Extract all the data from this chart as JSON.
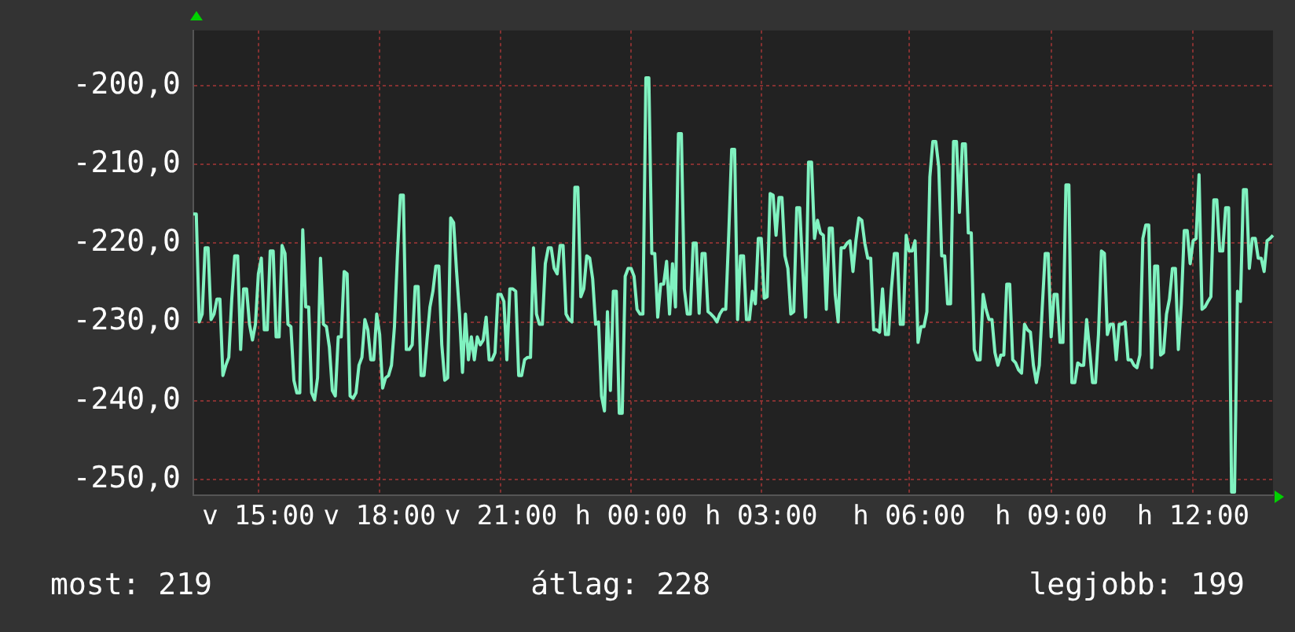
{
  "chart_data": {
    "type": "line",
    "color": "#80f2c0",
    "categories": [
      null,
      null,
      null,
      null,
      null,
      null,
      null,
      null,
      null,
      null,
      null,
      null,
      null,
      null,
      null,
      null,
      null,
      null,
      null,
      null,
      null,
      null,
      "v 15:00",
      null,
      null,
      null,
      null,
      null,
      null,
      null,
      null,
      null,
      null,
      null,
      null,
      null,
      null,
      null,
      null,
      null,
      null,
      null,
      null,
      null,
      null,
      null,
      null,
      null,
      null,
      null,
      null,
      null,
      null,
      null,
      null,
      null,
      null,
      null,
      null,
      null,
      null,
      null,
      null,
      "v 18:00",
      null,
      null,
      null,
      null,
      null,
      null,
      null,
      null,
      null,
      null,
      null,
      null,
      null,
      null,
      null,
      null,
      null,
      null,
      null,
      null,
      null,
      null,
      null,
      null,
      null,
      null,
      null,
      null,
      null,
      null,
      null,
      null,
      null,
      null,
      null,
      null,
      null,
      null,
      null,
      null,
      "v 21:00",
      null,
      null,
      null,
      null,
      null,
      null,
      null,
      null,
      null,
      null,
      null,
      null,
      null,
      null,
      null,
      null,
      null,
      null,
      null,
      null,
      null,
      null,
      null,
      null,
      null,
      null,
      null,
      null,
      null,
      null,
      null,
      null,
      null,
      null,
      null,
      null,
      null,
      null,
      null,
      null,
      null,
      null,
      null,
      "h 00:00",
      null,
      null,
      null,
      null,
      null,
      null,
      null,
      null,
      null,
      null,
      null,
      null,
      null,
      null,
      null,
      null,
      null,
      null,
      null,
      null,
      null,
      null,
      null,
      null,
      null,
      null,
      null,
      null,
      null,
      null,
      null,
      null,
      null,
      null,
      null,
      null,
      null,
      null,
      null,
      null,
      null,
      null,
      null,
      "h 03:00",
      null,
      null,
      null,
      null,
      null,
      null,
      null,
      null,
      null,
      null,
      null,
      null,
      null,
      null,
      null,
      null,
      null,
      null,
      null,
      null,
      null,
      null,
      null,
      null,
      null,
      null,
      null,
      null,
      null,
      null,
      null,
      null,
      null,
      null,
      null,
      null,
      null,
      null,
      null,
      null,
      null,
      null,
      null,
      null,
      null,
      null,
      null,
      null,
      null,
      "h 06:00",
      null,
      null,
      null,
      null,
      null,
      null,
      null,
      null,
      null,
      null,
      null,
      null,
      null,
      null,
      null,
      null,
      null,
      null,
      null,
      null,
      null,
      null,
      null,
      null,
      null,
      null,
      null,
      null,
      null,
      null,
      null,
      null,
      null,
      null,
      null,
      null,
      null,
      null,
      null,
      null,
      null,
      null,
      null,
      null,
      null,
      null,
      null,
      "h 09:00",
      null,
      null,
      null,
      null,
      null,
      null,
      null,
      null,
      null,
      null,
      null,
      null,
      null,
      null,
      null,
      null,
      null,
      null,
      null,
      null,
      null,
      null,
      null,
      null,
      null,
      null,
      null,
      null,
      null,
      null,
      null,
      null,
      null,
      null,
      null,
      null,
      null,
      null,
      null,
      null,
      null,
      null,
      null,
      null,
      null,
      null,
      null,
      "h 12:00",
      null,
      null,
      null,
      null,
      null,
      null,
      null,
      null,
      null,
      null,
      null,
      null,
      null,
      null,
      null,
      null,
      null,
      null,
      null,
      null,
      null,
      null,
      null,
      null,
      null,
      null,
      null
    ],
    "values": [
      -216.3,
      -216.3,
      -230.0,
      -229.0,
      -220.6,
      -220.6,
      -229.7,
      -229.0,
      -227.1,
      -227.1,
      -236.8,
      -235.5,
      -234.5,
      -227.1,
      -221.6,
      -221.6,
      -233.5,
      -225.8,
      -225.8,
      -230.3,
      -232.3,
      -230.3,
      -223.9,
      -221.9,
      -231.0,
      -231.0,
      -221.0,
      -221.0,
      -231.9,
      -231.9,
      -220.3,
      -221.3,
      -230.3,
      -230.6,
      -237.4,
      -239.0,
      -239.0,
      -218.3,
      -228.1,
      -228.1,
      -239.0,
      -239.9,
      -237.1,
      -221.9,
      -230.3,
      -230.6,
      -233.2,
      -238.7,
      -239.4,
      -231.9,
      -231.9,
      -223.6,
      -223.9,
      -239.4,
      -239.7,
      -239.0,
      -235.5,
      -234.5,
      -229.7,
      -231.0,
      -234.8,
      -234.8,
      -229.0,
      -231.6,
      -238.4,
      -237.1,
      -236.8,
      -235.5,
      -230.6,
      -221.6,
      -213.9,
      -213.9,
      -233.5,
      -233.5,
      -232.9,
      -225.5,
      -225.5,
      -236.8,
      -236.8,
      -232.3,
      -228.1,
      -226.1,
      -222.9,
      -222.9,
      -232.9,
      -237.4,
      -237.1,
      -216.8,
      -217.4,
      -223.6,
      -229.0,
      -236.4,
      -229.0,
      -234.8,
      -231.9,
      -234.8,
      -231.9,
      -232.9,
      -232.3,
      -229.4,
      -234.8,
      -234.8,
      -233.9,
      -226.5,
      -226.5,
      -227.4,
      -234.8,
      -225.8,
      -225.8,
      -226.1,
      -236.8,
      -236.8,
      -234.8,
      -234.5,
      -234.5,
      -220.6,
      -229.0,
      -230.3,
      -230.3,
      -222.6,
      -220.6,
      -220.6,
      -223.2,
      -223.9,
      -220.3,
      -220.3,
      -229.0,
      -229.7,
      -230.0,
      -212.9,
      -212.9,
      -226.8,
      -225.8,
      -221.6,
      -221.9,
      -224.5,
      -230.3,
      -230.0,
      -239.4,
      -241.3,
      -228.7,
      -238.7,
      -226.1,
      -226.1,
      -241.6,
      -241.6,
      -224.2,
      -223.2,
      -223.2,
      -224.2,
      -228.4,
      -229.0,
      -229.0,
      -199.0,
      -199.0,
      -221.3,
      -221.3,
      -229.4,
      -225.2,
      -225.2,
      -222.3,
      -229.0,
      -222.6,
      -228.1,
      -206.1,
      -206.1,
      -225.8,
      -229.0,
      -229.0,
      -220.0,
      -220.0,
      -228.9,
      -221.3,
      -221.3,
      -228.7,
      -229.0,
      -229.4,
      -230.0,
      -229.0,
      -228.4,
      -228.4,
      -219.0,
      -208.1,
      -208.1,
      -229.7,
      -221.6,
      -221.6,
      -229.7,
      -229.7,
      -226.1,
      -227.7,
      -219.4,
      -219.4,
      -227.0,
      -226.8,
      -213.7,
      -213.9,
      -219.0,
      -214.2,
      -214.2,
      -221.6,
      -223.2,
      -229.0,
      -228.7,
      -215.5,
      -215.5,
      -223.2,
      -229.4,
      -209.7,
      -209.7,
      -219.4,
      -217.1,
      -218.7,
      -219.0,
      -228.4,
      -218.1,
      -218.1,
      -226.5,
      -230.0,
      -220.6,
      -220.6,
      -220.0,
      -219.7,
      -223.6,
      -219.7,
      -216.8,
      -217.1,
      -220.0,
      -221.9,
      -221.9,
      -231.0,
      -231.0,
      -231.3,
      -225.8,
      -231.6,
      -231.6,
      -225.8,
      -221.3,
      -221.3,
      -230.3,
      -230.3,
      -219.0,
      -221.0,
      -221.0,
      -219.7,
      -232.6,
      -230.6,
      -230.6,
      -228.7,
      -211.6,
      -207.1,
      -207.1,
      -210.3,
      -221.6,
      -221.6,
      -227.7,
      -227.7,
      -207.1,
      -207.1,
      -216.1,
      -207.4,
      -207.4,
      -218.7,
      -218.7,
      -233.5,
      -234.8,
      -234.8,
      -226.5,
      -228.4,
      -229.7,
      -229.7,
      -233.9,
      -235.5,
      -234.2,
      -234.2,
      -225.2,
      -225.2,
      -234.8,
      -235.2,
      -236.1,
      -236.5,
      -230.3,
      -231.0,
      -231.3,
      -235.5,
      -237.7,
      -235.5,
      -228.1,
      -221.3,
      -221.3,
      -231.9,
      -226.5,
      -226.5,
      -232.6,
      -232.6,
      -212.6,
      -212.6,
      -237.7,
      -237.7,
      -235.2,
      -235.5,
      -235.5,
      -229.7,
      -233.5,
      -237.7,
      -237.7,
      -231.6,
      -221.0,
      -221.3,
      -231.6,
      -230.3,
      -230.3,
      -234.8,
      -230.3,
      -230.3,
      -230.0,
      -234.8,
      -234.8,
      -235.5,
      -235.8,
      -234.2,
      -219.4,
      -217.7,
      -217.7,
      -235.8,
      -222.9,
      -222.9,
      -234.2,
      -233.9,
      -229.0,
      -227.1,
      -223.2,
      -223.2,
      -233.5,
      -227.7,
      -218.4,
      -218.4,
      -222.6,
      -219.7,
      -219.4,
      -211.3,
      -228.4,
      -228.1,
      -227.4,
      -226.8,
      -214.5,
      -214.5,
      -221.0,
      -221.0,
      -215.5,
      -215.5,
      -251.6,
      -251.6,
      -226.1,
      -227.4,
      -213.2,
      -213.2,
      -223.2,
      -219.4,
      -219.4,
      -221.9,
      -221.9,
      -223.6,
      -219.7,
      -219.4,
      -219.0
    ],
    "ylim": [
      -252,
      -193
    ],
    "yticks": [
      {
        "value": -250,
        "label": "-250,0"
      },
      {
        "value": -240,
        "label": "-240,0"
      },
      {
        "value": -230,
        "label": "-230,0"
      },
      {
        "value": -220,
        "label": "-220,0"
      },
      {
        "value": -210,
        "label": "-210,0"
      },
      {
        "value": -200,
        "label": "-200,0"
      }
    ],
    "grid": true,
    "legend": false,
    "marker": "none",
    "line_style": "solid",
    "annotations": [
      "most: 219",
      "átlag: 228",
      "legjobb: 199"
    ]
  }
}
